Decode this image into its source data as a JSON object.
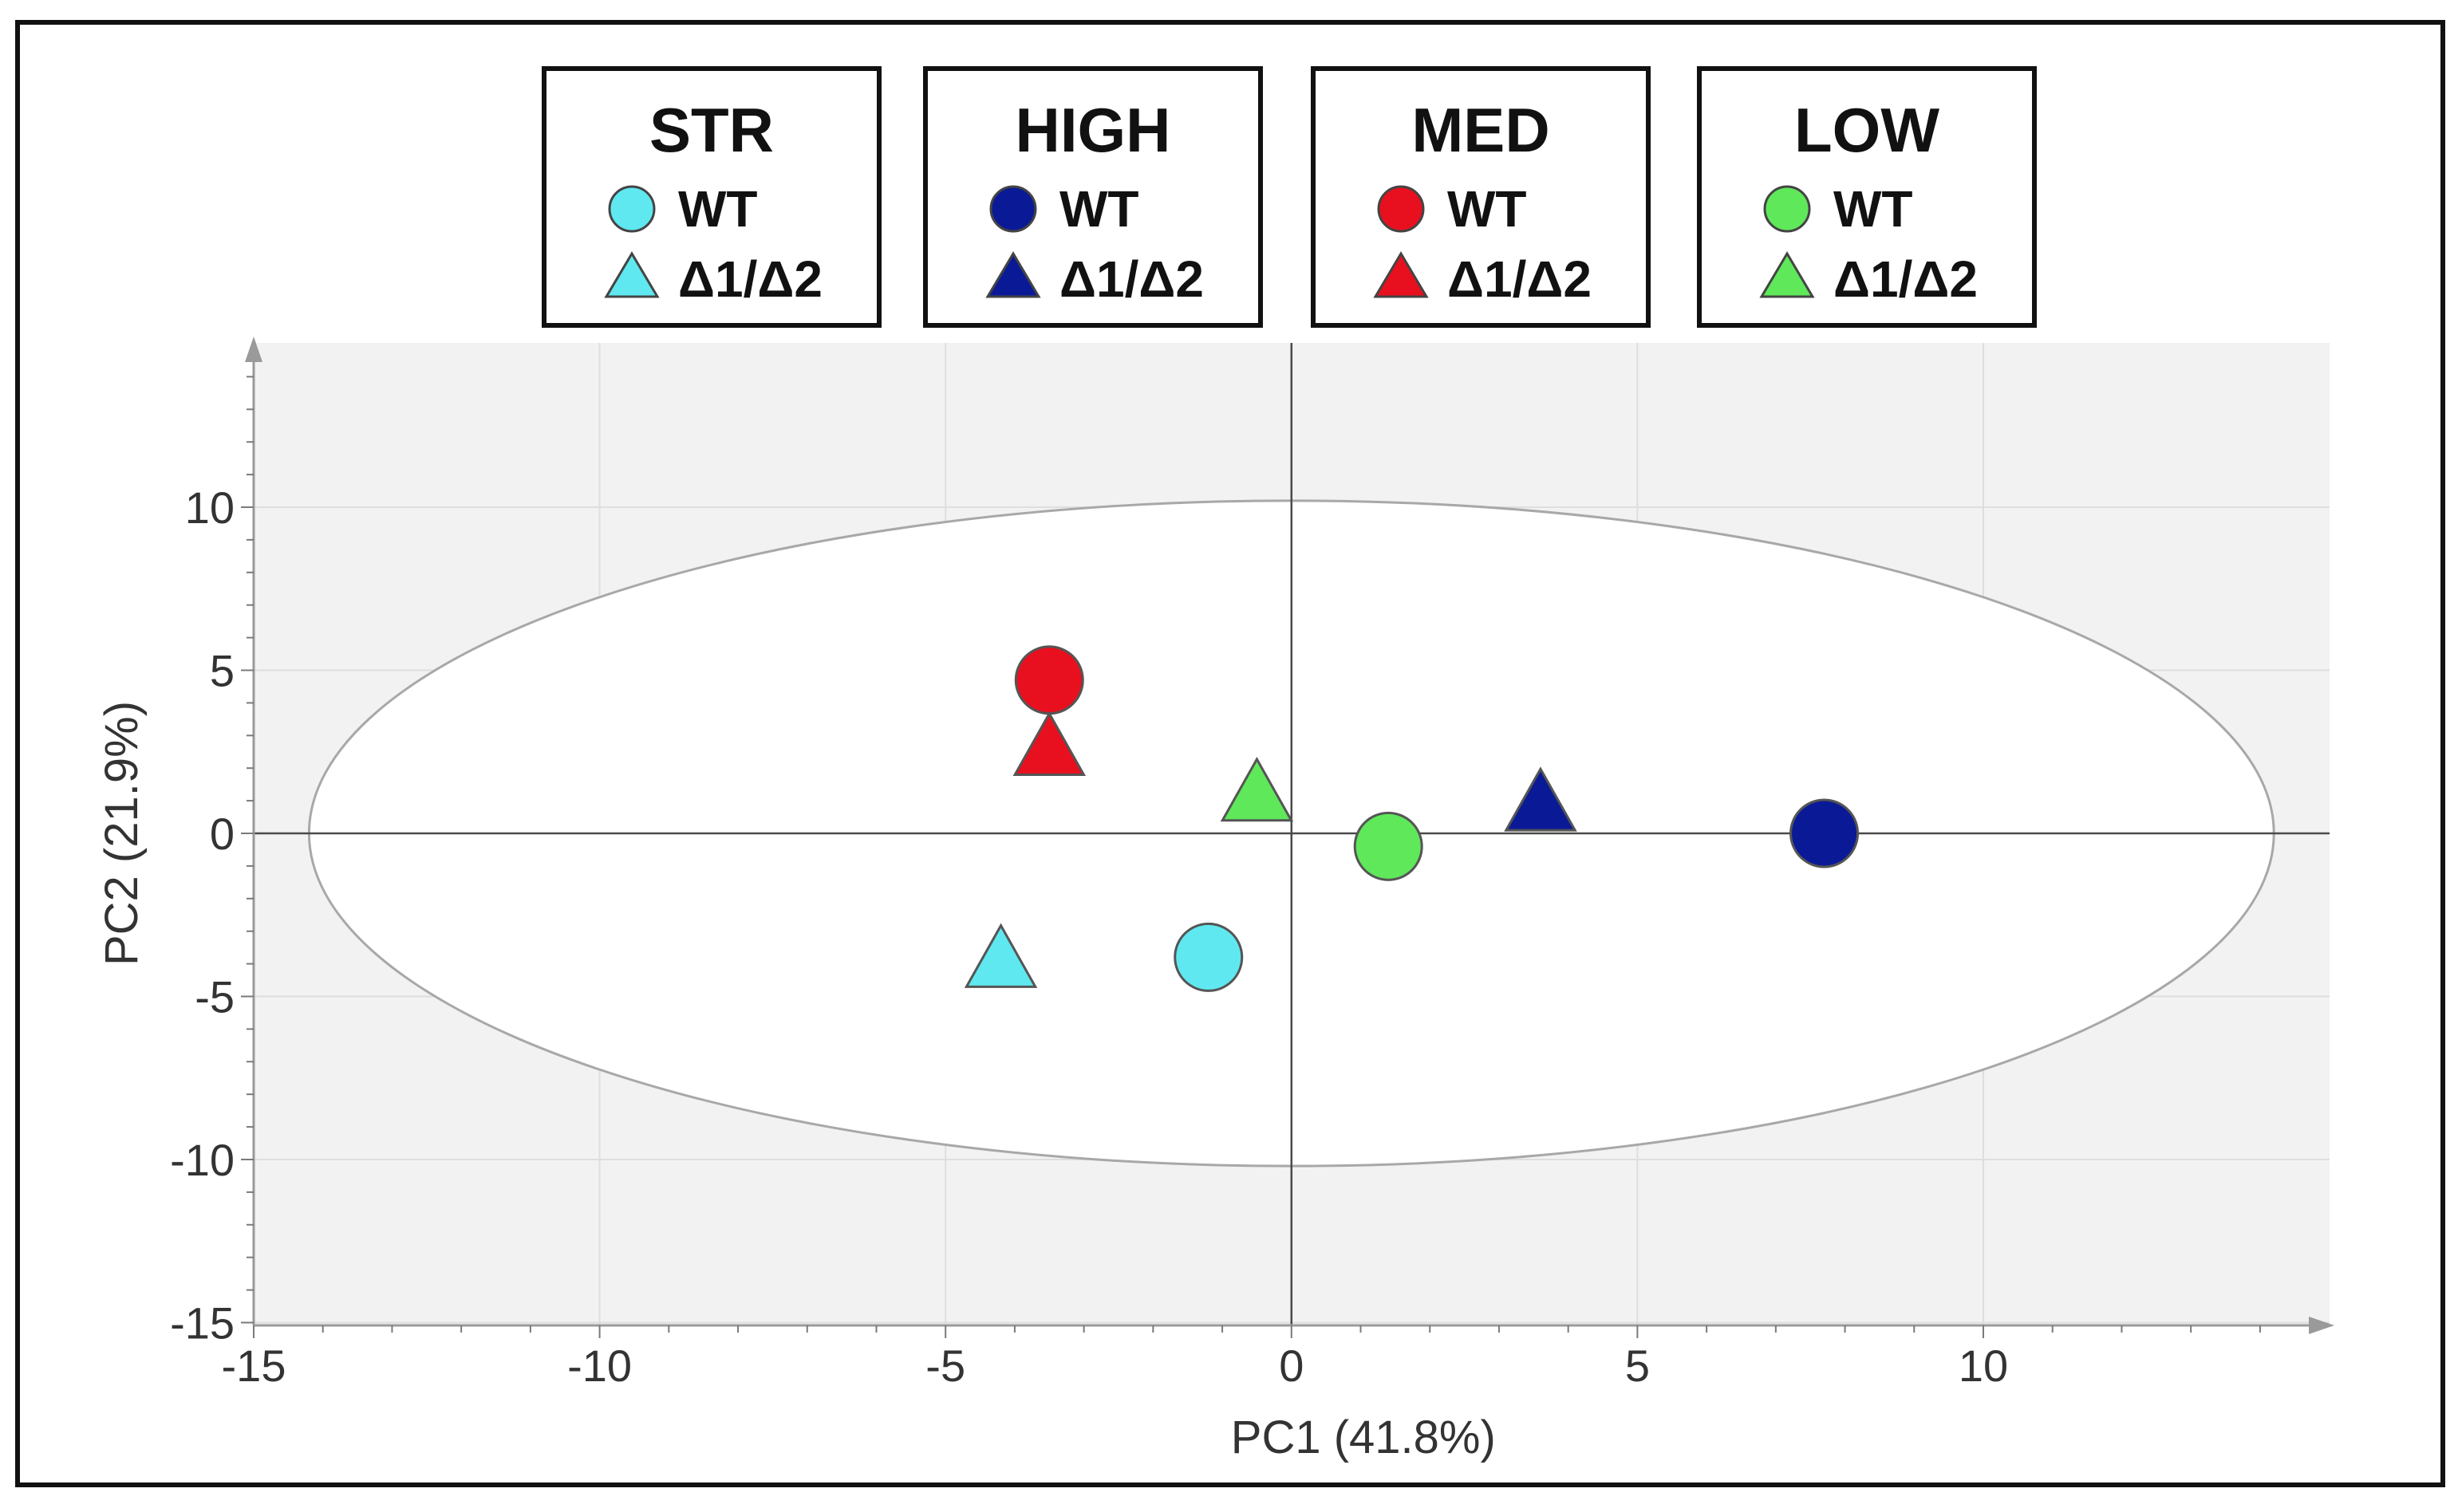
{
  "chart_data": {
    "type": "scatter",
    "title": "",
    "xlabel": "PC1 (41.8%)",
    "ylabel": "PC2 (21.9%)",
    "xlim": [
      -15,
      15
    ],
    "ylim": [
      -15,
      15
    ],
    "xticks": [
      -15,
      -10,
      -5,
      0,
      5,
      10
    ],
    "yticks": [
      -15,
      -10,
      -5,
      0,
      5,
      10
    ],
    "grid": true,
    "confidence_ellipse": {
      "rx": 14.2,
      "ry": 10.2,
      "cx": 0,
      "cy": 0
    },
    "legend_groups": [
      {
        "name": "STR",
        "color": "#5fe8f0",
        "items": [
          "WT",
          "Δ1/Δ2"
        ]
      },
      {
        "name": "HIGH",
        "color": "#0a1a96",
        "items": [
          "WT",
          "Δ1/Δ2"
        ]
      },
      {
        "name": "MED",
        "color": "#e8101e",
        "items": [
          "WT",
          "Δ1/Δ2"
        ]
      },
      {
        "name": "LOW",
        "color": "#5fe85a",
        "items": [
          "WT",
          "Δ1/Δ2"
        ]
      }
    ],
    "series": [
      {
        "name": "STR WT",
        "marker": "circle",
        "color": "#5fe8f0",
        "x": -1.2,
        "y": -3.8
      },
      {
        "name": "STR Δ1/Δ2",
        "marker": "triangle",
        "color": "#5fe8f0",
        "x": -4.2,
        "y": -4.0
      },
      {
        "name": "HIGH WT",
        "marker": "circle",
        "color": "#0a1a96",
        "x": 7.7,
        "y": 0.0
      },
      {
        "name": "HIGH Δ1/Δ2",
        "marker": "triangle",
        "color": "#0a1a96",
        "x": 3.6,
        "y": 0.8
      },
      {
        "name": "MED WT",
        "marker": "circle",
        "color": "#e8101e",
        "x": -3.5,
        "y": 4.7
      },
      {
        "name": "MED Δ1/Δ2",
        "marker": "triangle",
        "color": "#e8101e",
        "x": -3.5,
        "y": 2.5
      },
      {
        "name": "LOW WT",
        "marker": "circle",
        "color": "#5fe85a",
        "x": 1.4,
        "y": -0.4
      },
      {
        "name": "LOW Δ1/Δ2",
        "marker": "triangle",
        "color": "#5fe85a",
        "x": -0.5,
        "y": 1.1
      }
    ]
  }
}
